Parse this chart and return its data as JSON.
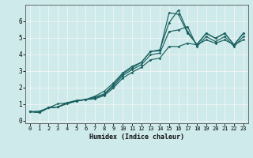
{
  "title": "",
  "xlabel": "Humidex (Indice chaleur)",
  "ylabel": "",
  "xlim": [
    -0.5,
    23.5
  ],
  "ylim": [
    -0.15,
    7.0
  ],
  "yticks": [
    0,
    1,
    2,
    3,
    4,
    5,
    6
  ],
  "xticks": [
    0,
    1,
    2,
    3,
    4,
    5,
    6,
    7,
    8,
    9,
    10,
    11,
    12,
    13,
    14,
    15,
    16,
    17,
    18,
    19,
    20,
    21,
    22,
    23
  ],
  "background_color": "#ceeaea",
  "grid_color": "#f5f5f5",
  "line_color": "#1a6060",
  "lines": [
    {
      "x": [
        0,
        1,
        2,
        3,
        4,
        5,
        6,
        7,
        8,
        9,
        10,
        11,
        12,
        13,
        14,
        15,
        16,
        17,
        18,
        19,
        20,
        21,
        22,
        23
      ],
      "y": [
        0.55,
        0.5,
        0.78,
        0.83,
        1.08,
        1.22,
        1.28,
        1.42,
        1.62,
        2.18,
        2.82,
        3.18,
        3.52,
        4.18,
        4.22,
        6.52,
        6.42,
        5.28,
        4.62,
        5.28,
        4.98,
        5.28,
        4.58,
        5.28
      ]
    },
    {
      "x": [
        0,
        1,
        2,
        3,
        4,
        5,
        6,
        7,
        8,
        9,
        10,
        11,
        12,
        13,
        14,
        15,
        16,
        17,
        18,
        19,
        20,
        21,
        22,
        23
      ],
      "y": [
        0.55,
        0.5,
        0.78,
        0.83,
        1.08,
        1.22,
        1.28,
        1.48,
        1.78,
        2.28,
        2.88,
        3.28,
        3.52,
        4.18,
        4.28,
        5.92,
        6.68,
        5.38,
        4.58,
        5.28,
        4.98,
        5.28,
        4.58,
        5.28
      ]
    },
    {
      "x": [
        0,
        1,
        2,
        3,
        4,
        5,
        6,
        7,
        8,
        9,
        10,
        11,
        12,
        13,
        14,
        15,
        16,
        17,
        18,
        19,
        20,
        21,
        22,
        23
      ],
      "y": [
        0.55,
        0.5,
        0.78,
        0.83,
        1.02,
        1.18,
        1.28,
        1.38,
        1.58,
        2.08,
        2.72,
        3.08,
        3.38,
        3.98,
        4.08,
        5.38,
        5.48,
        5.68,
        4.48,
        5.08,
        4.78,
        5.08,
        4.48,
        5.08
      ]
    },
    {
      "x": [
        0,
        1,
        2,
        3,
        4,
        5,
        6,
        7,
        8,
        9,
        10,
        11,
        12,
        13,
        14,
        15,
        16,
        17,
        18,
        19,
        20,
        21,
        22,
        23
      ],
      "y": [
        0.55,
        0.58,
        0.78,
        1.02,
        1.08,
        1.18,
        1.28,
        1.32,
        1.52,
        1.98,
        2.58,
        2.92,
        3.22,
        3.68,
        3.78,
        4.48,
        4.48,
        4.68,
        4.58,
        4.88,
        4.68,
        4.88,
        4.58,
        4.88
      ]
    }
  ]
}
